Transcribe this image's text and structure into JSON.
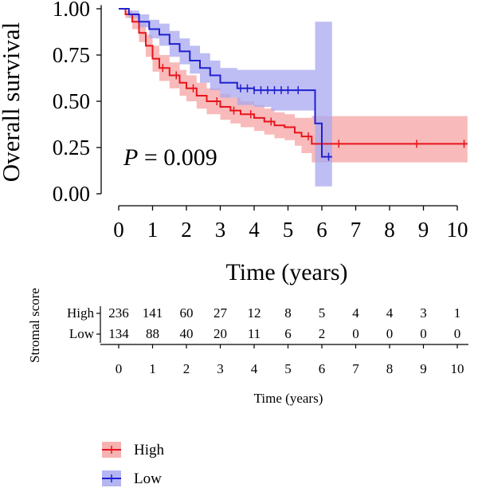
{
  "chart_data": {
    "type": "line",
    "subtype": "kaplan-meier survival curve with confidence bands and risk table",
    "xlabel": "Time (years)",
    "ylabel": "Overall survival",
    "xlim": [
      0,
      10
    ],
    "ylim": [
      0,
      1
    ],
    "x_ticks": [
      "0",
      "1",
      "2",
      "3",
      "4",
      "5",
      "6",
      "7",
      "8",
      "9",
      "10"
    ],
    "y_ticks": [
      "0.00",
      "0.25",
      "0.50",
      "0.75",
      "1.00"
    ],
    "annotation": {
      "p_symbol": "P",
      "p_text": " = 0.009"
    },
    "series": [
      {
        "name": "High",
        "color": "#e8141c",
        "band_color": "#f5a3a3",
        "x": [
          0,
          0.2,
          0.4,
          0.6,
          0.8,
          1.0,
          1.2,
          1.5,
          1.8,
          2.0,
          2.3,
          2.6,
          3.0,
          3.3,
          3.6,
          4.0,
          4.3,
          4.6,
          4.9,
          5.2,
          5.4,
          5.7,
          6.0,
          10.3
        ],
        "y": [
          1.0,
          0.97,
          0.93,
          0.87,
          0.8,
          0.73,
          0.68,
          0.64,
          0.6,
          0.57,
          0.53,
          0.5,
          0.47,
          0.45,
          0.43,
          0.41,
          0.39,
          0.37,
          0.36,
          0.33,
          0.31,
          0.27,
          0.27,
          0.27
        ],
        "lower": [
          1.0,
          0.95,
          0.89,
          0.82,
          0.74,
          0.66,
          0.61,
          0.57,
          0.53,
          0.5,
          0.46,
          0.43,
          0.4,
          0.38,
          0.36,
          0.34,
          0.32,
          0.3,
          0.29,
          0.26,
          0.22,
          0.17,
          0.17,
          0.17
        ],
        "upper": [
          1.0,
          0.99,
          0.97,
          0.92,
          0.86,
          0.8,
          0.75,
          0.71,
          0.67,
          0.64,
          0.6,
          0.57,
          0.54,
          0.52,
          0.5,
          0.48,
          0.46,
          0.44,
          0.43,
          0.41,
          0.41,
          0.42,
          0.42,
          0.42
        ]
      },
      {
        "name": "Low",
        "color": "#2020d0",
        "band_color": "#a8a8f0",
        "x": [
          0,
          0.3,
          0.6,
          0.9,
          1.2,
          1.5,
          1.8,
          2.1,
          2.4,
          2.7,
          3.0,
          3.5,
          4.0,
          4.5,
          5.0,
          5.5,
          5.8,
          5.9,
          6.0,
          6.1,
          6.3
        ],
        "y": [
          1.0,
          0.97,
          0.93,
          0.89,
          0.86,
          0.81,
          0.77,
          0.72,
          0.68,
          0.64,
          0.6,
          0.57,
          0.56,
          0.56,
          0.56,
          0.56,
          0.38,
          0.38,
          0.2,
          0.2,
          0.2
        ],
        "lower": [
          1.0,
          0.95,
          0.9,
          0.84,
          0.8,
          0.74,
          0.7,
          0.65,
          0.6,
          0.56,
          0.52,
          0.48,
          0.47,
          0.45,
          0.45,
          0.45,
          0.04,
          0.04,
          0.04,
          0.04,
          0.04
        ],
        "upper": [
          1.0,
          0.99,
          0.97,
          0.94,
          0.92,
          0.88,
          0.84,
          0.8,
          0.76,
          0.72,
          0.68,
          0.67,
          0.67,
          0.67,
          0.67,
          0.67,
          0.93,
          0.93,
          0.93,
          0.93,
          0.93
        ],
        "censor_x": [
          3.6,
          3.8,
          4.0,
          4.2,
          4.4,
          4.6,
          4.8,
          5.0,
          5.3,
          6.2
        ]
      }
    ],
    "high_censor_x": [
      1.3,
      1.7,
      2.2,
      2.9,
      3.4,
      3.9,
      4.5,
      5.6,
      6.5,
      8.8,
      10.2
    ],
    "risk_table": {
      "title": "Stromal score",
      "xlabel": "Time (years)",
      "times": [
        "0",
        "1",
        "2",
        "3",
        "4",
        "5",
        "6",
        "7",
        "8",
        "9",
        "10"
      ],
      "rows": [
        {
          "name": "High",
          "color": "#e8141c",
          "counts": [
            "236",
            "141",
            "60",
            "27",
            "12",
            "8",
            "5",
            "4",
            "4",
            "3",
            "1"
          ]
        },
        {
          "name": "Low",
          "color": "#2020d0",
          "counts": [
            "134",
            "88",
            "40",
            "20",
            "11",
            "6",
            "2",
            "0",
            "0",
            "0",
            "0"
          ]
        }
      ]
    },
    "legend": {
      "placement": "bottom-left",
      "entries": [
        {
          "name": "High",
          "color": "#e8141c",
          "band_color": "#f5a3a3"
        },
        {
          "name": "Low",
          "color": "#2020d0",
          "band_color": "#a8a8f0"
        }
      ]
    }
  }
}
